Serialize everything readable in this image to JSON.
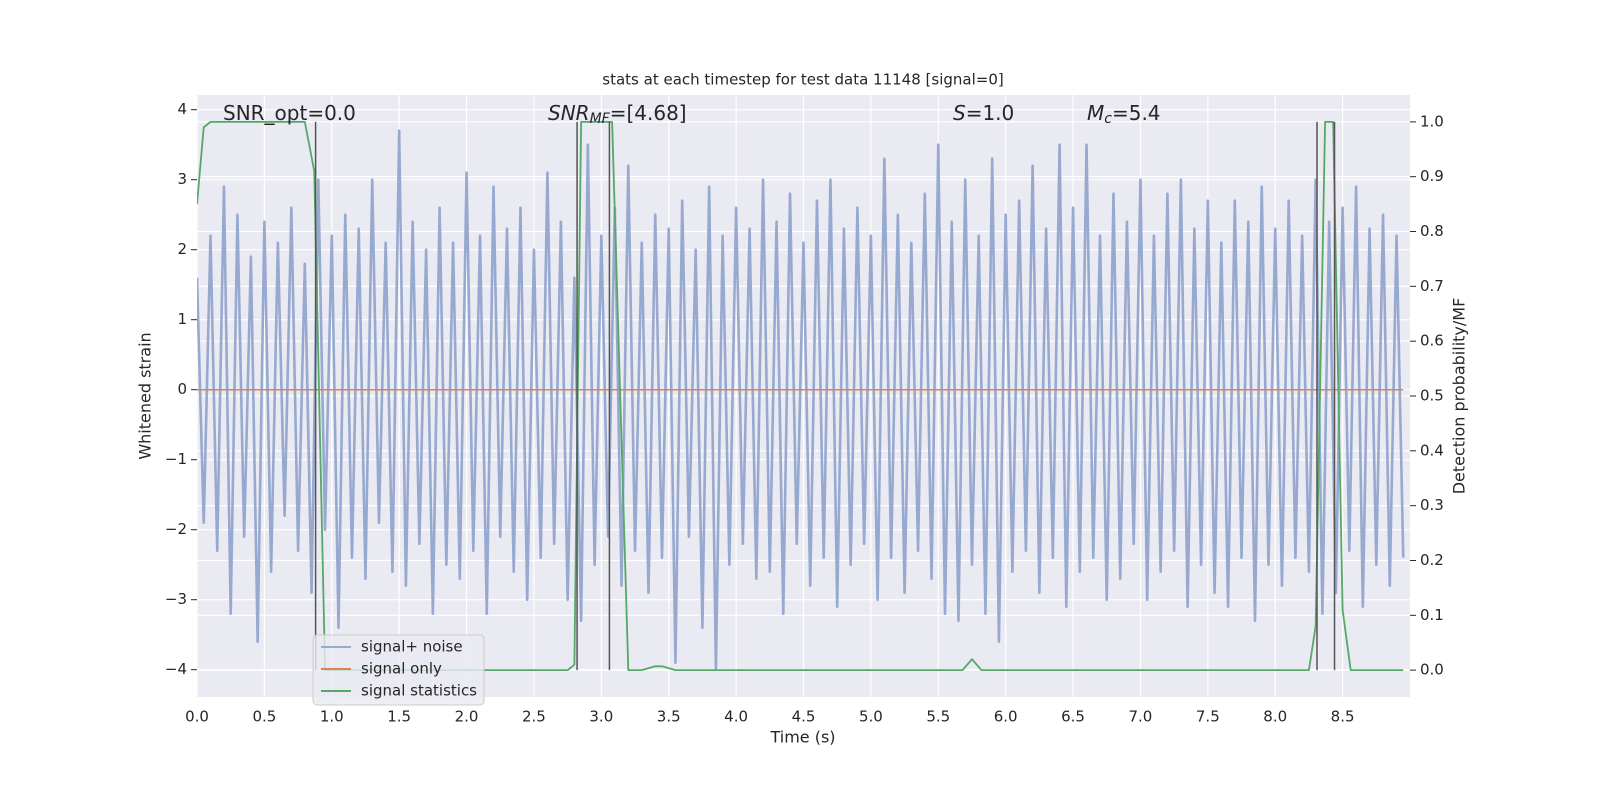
{
  "chart_data": {
    "type": "line",
    "title": "stats at each timestep for test data 11148 [signal=0]",
    "xlabel": "Time (s)",
    "ylabel": "Whitened strain",
    "y2label": "Detection probability/MF",
    "xlim": [
      0,
      9.0
    ],
    "ylim": [
      -4.39,
      4.21
    ],
    "y2lim": [
      -0.049,
      1.049
    ],
    "xticks": [
      {
        "value": 0,
        "label": "0.0"
      },
      0.5,
      {
        "value": 1,
        "label": "1.0"
      },
      1.5,
      {
        "value": 2,
        "label": "2.0"
      },
      2.5,
      {
        "value": 3,
        "label": "3.0"
      },
      3.5,
      {
        "value": 4,
        "label": "4.0"
      },
      4.5,
      {
        "value": 5,
        "label": "5.0"
      },
      5.5,
      {
        "value": 6,
        "label": "6.0"
      },
      6.5,
      {
        "value": 7,
        "label": "7.0"
      },
      7.5,
      {
        "value": 8,
        "label": "8.0"
      },
      8.5
    ],
    "yticks": [
      {
        "value": -4,
        "label": "−4"
      },
      {
        "value": -3,
        "label": "−3"
      },
      {
        "value": -2,
        "label": "−2"
      },
      {
        "value": -1,
        "label": "−1"
      },
      0,
      1,
      2,
      3,
      4
    ],
    "y2ticks": [
      {
        "value": 0,
        "label": "0.0"
      },
      0.1,
      0.2,
      0.3,
      0.4,
      0.5,
      0.6,
      0.7,
      0.8,
      0.9,
      {
        "value": 1,
        "label": "1.0"
      }
    ],
    "grid": true,
    "legend": "lower left",
    "series": [
      {
        "name": "signal+ noise",
        "color": "#98a9d0",
        "x": [
          0,
          0.05,
          0.1,
          0.15,
          0.2,
          0.25,
          0.3,
          0.35,
          0.4,
          0.45,
          0.5,
          0.55,
          0.6,
          0.65,
          0.7,
          0.75,
          0.8,
          0.85,
          0.9,
          0.95,
          1,
          1.05,
          1.1,
          1.15,
          1.2,
          1.25,
          1.3,
          1.35,
          1.4,
          1.45,
          1.5,
          1.55,
          1.6,
          1.65,
          1.7,
          1.75,
          1.8,
          1.85,
          1.9,
          1.95,
          2,
          2.05,
          2.1,
          2.15,
          2.2,
          2.25,
          2.3,
          2.35,
          2.4,
          2.45,
          2.5,
          2.55,
          2.6,
          2.65,
          2.7,
          2.75,
          2.8,
          2.85,
          2.9,
          2.95,
          3,
          3.05,
          3.1,
          3.15,
          3.2,
          3.25,
          3.3,
          3.35,
          3.4,
          3.45,
          3.5,
          3.55,
          3.6,
          3.65,
          3.7,
          3.75,
          3.8,
          3.85,
          3.9,
          3.95,
          4,
          4.05,
          4.1,
          4.15,
          4.2,
          4.25,
          4.3,
          4.35,
          4.4,
          4.45,
          4.5,
          4.55,
          4.6,
          4.65,
          4.7,
          4.75,
          4.8,
          4.85,
          4.9,
          4.95,
          5,
          5.05,
          5.1,
          5.15,
          5.2,
          5.25,
          5.3,
          5.35,
          5.4,
          5.45,
          5.5,
          5.55,
          5.6,
          5.65,
          5.7,
          5.75,
          5.8,
          5.85,
          5.9,
          5.95,
          6,
          6.05,
          6.1,
          6.15,
          6.2,
          6.25,
          6.3,
          6.35,
          6.4,
          6.45,
          6.5,
          6.55,
          6.6,
          6.65,
          6.7,
          6.75,
          6.8,
          6.85,
          6.9,
          6.95,
          7,
          7.05,
          7.1,
          7.15,
          7.2,
          7.25,
          7.3,
          7.35,
          7.4,
          7.45,
          7.5,
          7.55,
          7.6,
          7.65,
          7.7,
          7.75,
          7.8,
          7.85,
          7.9,
          7.95,
          8,
          8.05,
          8.1,
          8.15,
          8.2,
          8.25,
          8.3,
          8.35,
          8.4,
          8.45,
          8.5,
          8.55,
          8.6,
          8.65,
          8.7,
          8.75,
          8.8,
          8.85,
          8.9,
          8.95
        ],
        "values": [
          1.6,
          -1.9,
          2.2,
          -2.3,
          2.9,
          -3.2,
          2.5,
          -2.1,
          1.9,
          -3.6,
          2.4,
          -2.6,
          2.1,
          -1.8,
          2.6,
          -2.3,
          1.8,
          -2.9,
          3.0,
          -2.0,
          2.2,
          -3.4,
          2.5,
          -2.4,
          2.3,
          -2.7,
          3.0,
          -1.9,
          2.1,
          -2.6,
          3.7,
          -2.8,
          2.4,
          -2.2,
          2.0,
          -3.2,
          2.6,
          -2.5,
          2.1,
          -2.7,
          3.1,
          -2.3,
          2.2,
          -3.2,
          2.9,
          -2.1,
          2.3,
          -2.6,
          2.6,
          -3.0,
          2.0,
          -2.4,
          3.1,
          -2.2,
          2.4,
          -3.0,
          1.6,
          -3.3,
          3.5,
          -2.5,
          2.2,
          -2.1,
          2.6,
          -2.8,
          3.2,
          -2.3,
          2.1,
          -2.9,
          2.5,
          -2.4,
          2.3,
          -3.9,
          2.7,
          -2.1,
          2.0,
          -3.4,
          2.9,
          -4.0,
          2.2,
          -2.5,
          2.6,
          -2.2,
          2.3,
          -2.7,
          3.0,
          -2.6,
          2.4,
          -3.2,
          2.8,
          -2.2,
          2.1,
          -2.8,
          2.7,
          -2.4,
          3.0,
          -3.1,
          2.3,
          -2.5,
          2.6,
          -2.2,
          2.2,
          -3.0,
          3.3,
          -2.4,
          2.5,
          -2.9,
          2.1,
          -2.3,
          2.8,
          -2.7,
          3.5,
          -3.2,
          2.4,
          -3.3,
          3.0,
          -2.5,
          2.2,
          -3.2,
          3.3,
          -3.6,
          2.5,
          -2.6,
          2.7,
          -2.3,
          3.2,
          -2.9,
          2.3,
          -2.4,
          3.5,
          -3.1,
          2.6,
          -2.6,
          3.5,
          -2.4,
          2.2,
          -3.0,
          2.8,
          -2.7,
          2.4,
          -2.2,
          3.0,
          -3.0,
          2.2,
          -2.6,
          2.8,
          -2.3,
          3.0,
          -3.1,
          2.3,
          -2.5,
          2.7,
          -2.9,
          2.1,
          -3.1,
          2.7,
          -2.4,
          2.4,
          -3.3,
          2.9,
          -2.5,
          2.3,
          -2.8,
          2.7,
          -2.4,
          2.2,
          -2.6,
          3.0,
          -3.2,
          2.4,
          -2.9,
          2.6,
          -2.3,
          2.9,
          -3.1,
          2.3,
          -2.5,
          2.5,
          -2.8,
          2.2,
          -2.4
        ]
      },
      {
        "name": "signal only",
        "color": "#dd8452",
        "x": [
          0,
          8.95
        ],
        "values": [
          0,
          0
        ]
      },
      {
        "name": "signal statistics",
        "color": "#55a868",
        "axis": "y2",
        "x": [
          0,
          0.05,
          0.1,
          0.8,
          0.87,
          0.95,
          2.75,
          2.8,
          2.85,
          3.08,
          3.2,
          3.3,
          3.4,
          3.45,
          3.55,
          5.68,
          5.75,
          5.82,
          8.25,
          8.3,
          8.37,
          8.43,
          8.5,
          8.56,
          8.95
        ],
        "values": [
          0.85,
          0.99,
          1.0,
          1.0,
          0.91,
          0,
          0,
          0.01,
          1.0,
          1.0,
          0,
          0,
          0.007,
          0.007,
          0,
          0,
          0.02,
          0,
          0,
          0.08,
          1.0,
          1.0,
          0.11,
          0,
          0
        ]
      }
    ],
    "detection_lines": {
      "color": "#555555",
      "x": [
        0.88,
        2.82,
        3.06,
        8.31,
        8.44
      ],
      "y2_range": [
        0,
        1.0
      ]
    },
    "annotations": [
      {
        "text": "SNR_opt=0.0"
      },
      {
        "math": "SNR",
        "sub": "MF",
        "text": "=[4.68]"
      },
      {
        "math": "S",
        "text": "=1.0"
      },
      {
        "math": "M",
        "sub": "c",
        "text": "=5.4"
      }
    ]
  }
}
